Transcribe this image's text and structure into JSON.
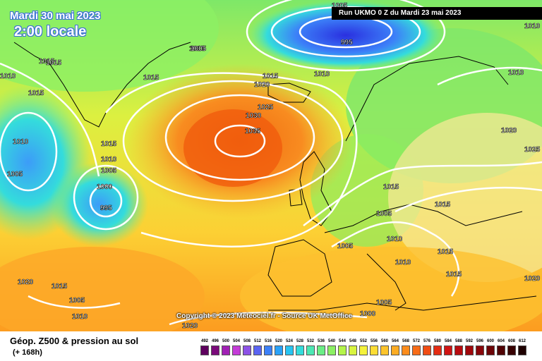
{
  "header": {
    "date": "Mardi 30 mai 2023",
    "time": "2:00 locale",
    "run": "Run UKMO 0 Z du Mardi 23 mai 2023"
  },
  "copyright": "Copyright © 2023 Meteociel.fr - Source UK MetOffice",
  "legend": {
    "title": "Géop. Z500 & pression au sol",
    "subtitle": "(+ 168h)",
    "scale_labels": [
      "492",
      "496",
      "500",
      "504",
      "508",
      "512",
      "516",
      "520",
      "524",
      "528",
      "532",
      "536",
      "540",
      "544",
      "548",
      "552",
      "556",
      "560",
      "564",
      "568",
      "572",
      "576",
      "580",
      "584",
      "588",
      "592",
      "596",
      "600",
      "604",
      "608",
      "612"
    ],
    "scale_colors": [
      "#5e005e",
      "#7a0a7a",
      "#a020b4",
      "#c43cd8",
      "#8c52e6",
      "#5a64f2",
      "#3c80f8",
      "#2aa2f8",
      "#28c4f2",
      "#34dcdc",
      "#4ce8b4",
      "#6aee86",
      "#8cf064",
      "#b4f44a",
      "#d8f440",
      "#f4f23c",
      "#fcdc34",
      "#fcc42c",
      "#fcac24",
      "#fc8c1c",
      "#f86c18",
      "#f04c14",
      "#e42c14",
      "#d01414",
      "#b80c10",
      "#a0080c",
      "#88060a",
      "#6c0406",
      "#500204",
      "#380102",
      "#1e0000"
    ],
    "colorbar_present": true
  },
  "map": {
    "background_fields": [
      "Z500 geopotential shading",
      "surface pressure isobars (white)",
      "coastlines (black)"
    ],
    "isobar_labels": [
      "1005",
      "1010",
      "1015",
      "1015",
      "1015",
      "1010",
      "1005",
      "995",
      "1020",
      "1015",
      "1010",
      "1015",
      "1025",
      "1030",
      "1035",
      "1015",
      "1010",
      "1005",
      "1000",
      "995",
      "1010",
      "1015",
      "1020",
      "1025",
      "1015",
      "1005",
      "1010",
      "1005",
      "1015",
      "1010",
      "1015",
      "1015",
      "1020",
      "1015",
      "1005",
      "1010",
      "1005",
      "1020",
      "1000",
      "1020",
      "1010",
      "1005"
    ],
    "highs_lows": [
      {
        "label": "1035",
        "type": "high"
      },
      {
        "label": "995",
        "type": "low"
      },
      {
        "label": "995",
        "type": "low"
      }
    ]
  }
}
